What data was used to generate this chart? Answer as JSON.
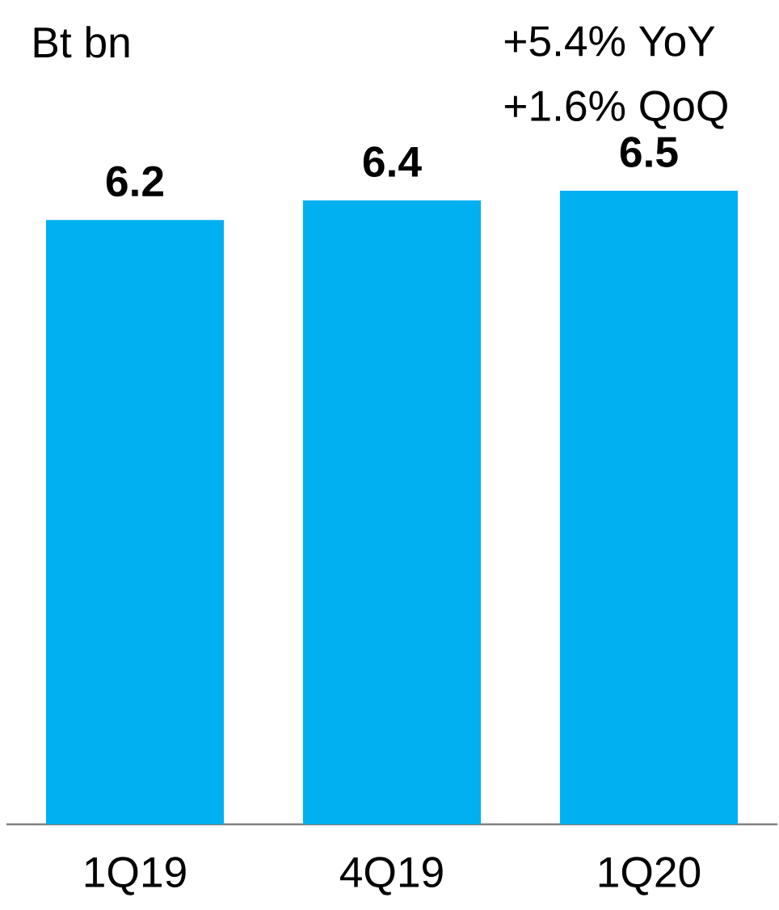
{
  "chart_data": {
    "type": "bar",
    "ylabel": "Bt bn",
    "annotations": [
      "+5.4%  YoY",
      "+1.6% QoQ"
    ],
    "categories": [
      "1Q19",
      "4Q19",
      "1Q20"
    ],
    "values": [
      6.2,
      6.4,
      6.5
    ],
    "color": "#00b0f0",
    "data_labels": true
  }
}
